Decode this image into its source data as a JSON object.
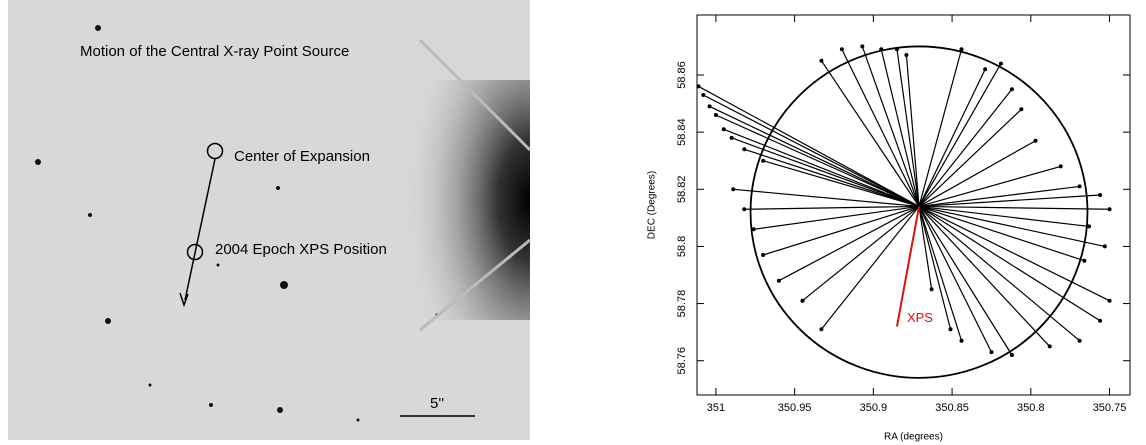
{
  "image_panel": {
    "title": "Motion of the Central X-ray Point Source",
    "labels": [
      "Center of Expansion",
      "2004 Epoch XPS Position"
    ],
    "scale_bar": "5''"
  },
  "chart_data": {
    "type": "vector",
    "xlabel": "RA (degrees)",
    "ylabel": "DEC (Degrees)",
    "xlim": [
      351.012,
      350.737
    ],
    "ylim": [
      58.748,
      58.881
    ],
    "xticks": [
      351,
      350.95,
      350.9,
      350.85,
      350.8,
      350.75
    ],
    "yticks": [
      58.76,
      58.78,
      58.8,
      58.82,
      58.84,
      58.86
    ],
    "color": "#000000",
    "origin": [
      350.871,
      58.814
    ],
    "x": [
      351.011,
      351.008,
      351.004,
      351.0,
      350.995,
      350.99,
      350.982,
      350.97,
      350.989,
      350.982,
      350.976,
      350.97,
      350.96,
      350.945,
      350.933,
      350.933,
      350.92,
      350.907,
      350.895,
      350.885,
      350.879,
      350.844,
      350.829,
      350.819,
      350.812,
      350.806,
      350.797,
      350.781,
      350.769,
      350.756,
      350.75,
      350.763,
      350.753,
      350.766,
      350.75,
      350.756,
      350.769,
      350.788,
      350.812,
      350.825,
      350.844,
      350.851,
      350.863
    ],
    "y": [
      58.856,
      58.853,
      58.849,
      58.846,
      58.841,
      58.838,
      58.834,
      58.83,
      58.82,
      58.813,
      58.806,
      58.797,
      58.788,
      58.781,
      58.771,
      58.865,
      58.869,
      58.87,
      58.869,
      58.869,
      58.867,
      58.869,
      58.862,
      58.864,
      58.855,
      58.848,
      58.837,
      58.828,
      58.821,
      58.818,
      58.813,
      58.807,
      58.8,
      58.795,
      58.781,
      58.774,
      58.767,
      58.765,
      58.762,
      58.763,
      58.767,
      58.771,
      58.785
    ],
    "circle": {
      "x": 350.871,
      "y": 58.812,
      "rx": 0.107,
      "ry": 0.058
    },
    "annotation": {
      "text": "XPS",
      "x": 350.885,
      "y": 58.772,
      "color": "#e01010"
    }
  }
}
